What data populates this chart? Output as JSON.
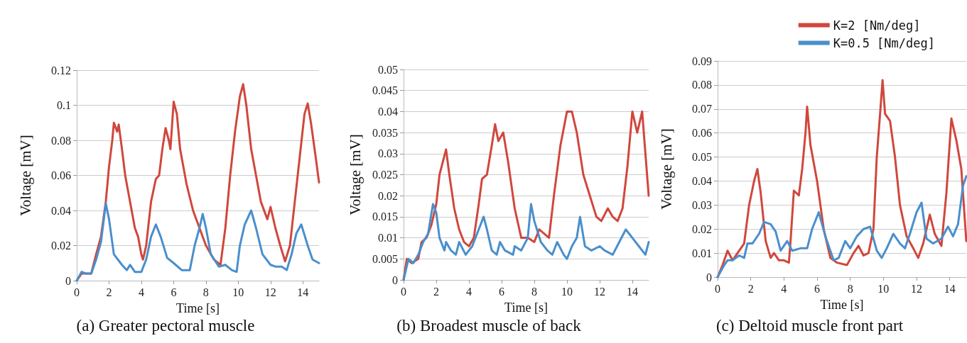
{
  "chart_data": [
    {
      "type": "line",
      "title": "(a) Greater pectoral muscle",
      "xlabel": "Time [s]",
      "ylabel": "Voltage [mV]",
      "xlim": [
        0,
        15
      ],
      "xticks": [
        0,
        2,
        4,
        6,
        8,
        10,
        12,
        14
      ],
      "ylim": [
        0,
        0.12
      ],
      "yticks": [
        0,
        0.02,
        0.04,
        0.06,
        0.08,
        0.1,
        0.12
      ],
      "grid": "y",
      "legend": false,
      "marker": "none",
      "line_style": "solid",
      "series": [
        {
          "color": "#d0473d",
          "x": [
            0,
            0.3,
            0.6,
            0.9,
            1.2,
            1.5,
            1.8,
            2.0,
            2.2,
            2.3,
            2.5,
            2.6,
            2.8,
            3.0,
            3.3,
            3.6,
            3.8,
            4.0,
            4.1,
            4.3,
            4.6,
            4.9,
            5.1,
            5.3,
            5.5,
            5.7,
            5.8,
            6.0,
            6.2,
            6.4,
            6.8,
            7.2,
            7.6,
            8.0,
            8.5,
            8.9,
            9.2,
            9.5,
            9.8,
            10.1,
            10.3,
            10.5,
            10.8,
            11.1,
            11.4,
            11.8,
            12.0,
            12.3,
            12.6,
            12.9,
            13.2,
            13.5,
            13.8,
            14.1,
            14.3,
            14.5,
            14.8,
            15
          ],
          "values": [
            0,
            0.004,
            0.004,
            0.004,
            0.015,
            0.025,
            0.045,
            0.065,
            0.08,
            0.09,
            0.085,
            0.089,
            0.075,
            0.06,
            0.045,
            0.03,
            0.025,
            0.015,
            0.012,
            0.02,
            0.045,
            0.058,
            0.06,
            0.075,
            0.087,
            0.08,
            0.075,
            0.102,
            0.095,
            0.075,
            0.055,
            0.04,
            0.03,
            0.02,
            0.012,
            0.009,
            0.03,
            0.06,
            0.085,
            0.105,
            0.112,
            0.1,
            0.075,
            0.06,
            0.045,
            0.035,
            0.042,
            0.03,
            0.02,
            0.011,
            0.02,
            0.045,
            0.07,
            0.095,
            0.101,
            0.09,
            0.07,
            0.056
          ]
        },
        {
          "color": "#4a8fcc",
          "x": [
            0,
            0.3,
            0.6,
            0.9,
            1.2,
            1.5,
            1.8,
            2.0,
            2.3,
            2.8,
            3.1,
            3.3,
            3.6,
            4.0,
            4.3,
            4.6,
            4.9,
            5.2,
            5.6,
            6.0,
            6.5,
            7.0,
            7.3,
            7.6,
            7.8,
            8.0,
            8.3,
            8.8,
            9.2,
            9.6,
            9.9,
            10.1,
            10.4,
            10.8,
            11.1,
            11.5,
            12.0,
            12.3,
            12.7,
            13.0,
            13.3,
            13.6,
            13.9,
            14.3,
            14.6,
            15
          ],
          "values": [
            0,
            0.005,
            0.004,
            0.004,
            0.012,
            0.022,
            0.044,
            0.035,
            0.015,
            0.009,
            0.006,
            0.009,
            0.005,
            0.005,
            0.012,
            0.025,
            0.032,
            0.025,
            0.013,
            0.01,
            0.006,
            0.006,
            0.02,
            0.03,
            0.038,
            0.03,
            0.015,
            0.008,
            0.009,
            0.006,
            0.005,
            0.02,
            0.032,
            0.04,
            0.03,
            0.015,
            0.009,
            0.008,
            0.008,
            0.006,
            0.015,
            0.027,
            0.032,
            0.02,
            0.012,
            0.01
          ]
        }
      ]
    },
    {
      "type": "line",
      "title": "(b) Broadest muscle of back",
      "xlabel": "Time [s]",
      "ylabel": "Voltage [mV]",
      "xlim": [
        0,
        15
      ],
      "xticks": [
        0,
        2,
        4,
        6,
        8,
        10,
        12,
        14
      ],
      "ylim": [
        0,
        0.05
      ],
      "yticks": [
        0,
        0.005,
        0.01,
        0.015,
        0.02,
        0.025,
        0.03,
        0.035,
        0.04,
        0.045,
        0.05
      ],
      "grid": "y",
      "legend": false,
      "marker": "none",
      "line_style": "solid",
      "series": [
        {
          "color": "#d0473d",
          "x": [
            0,
            0.2,
            0.5,
            0.9,
            1.1,
            1.4,
            1.7,
            2.0,
            2.2,
            2.4,
            2.6,
            2.8,
            3.1,
            3.4,
            3.7,
            4.0,
            4.3,
            4.6,
            4.8,
            5.1,
            5.4,
            5.6,
            5.8,
            6.1,
            6.4,
            6.8,
            7.2,
            7.6,
            8.0,
            8.3,
            8.6,
            8.9,
            9.2,
            9.6,
            10.0,
            10.3,
            10.6,
            11.0,
            11.4,
            11.8,
            12.1,
            12.5,
            12.8,
            13.1,
            13.4,
            13.7,
            14.0,
            14.3,
            14.6,
            14.8,
            15
          ],
          "values": [
            0,
            0.005,
            0.004,
            0.005,
            0.009,
            0.01,
            0.013,
            0.018,
            0.025,
            0.028,
            0.031,
            0.025,
            0.017,
            0.012,
            0.009,
            0.008,
            0.01,
            0.018,
            0.024,
            0.025,
            0.032,
            0.037,
            0.033,
            0.035,
            0.028,
            0.017,
            0.01,
            0.01,
            0.009,
            0.012,
            0.011,
            0.01,
            0.02,
            0.032,
            0.04,
            0.04,
            0.035,
            0.025,
            0.02,
            0.015,
            0.014,
            0.017,
            0.015,
            0.014,
            0.017,
            0.027,
            0.04,
            0.035,
            0.04,
            0.03,
            0.02
          ]
        },
        {
          "color": "#4a8fcc",
          "x": [
            0,
            0.3,
            0.6,
            0.9,
            1.2,
            1.5,
            1.8,
            2.0,
            2.2,
            2.5,
            2.6,
            2.9,
            3.2,
            3.4,
            3.8,
            4.2,
            4.6,
            4.9,
            5.1,
            5.4,
            5.7,
            5.9,
            6.2,
            6.7,
            6.8,
            7.2,
            7.6,
            7.8,
            8.0,
            8.4,
            8.8,
            9.1,
            9.4,
            9.8,
            10.0,
            10.3,
            10.6,
            10.8,
            11.1,
            11.5,
            12.0,
            12.3,
            12.8,
            13.2,
            13.6,
            14.0,
            14.4,
            14.8,
            15
          ],
          "values": [
            0,
            0.005,
            0.004,
            0.006,
            0.009,
            0.011,
            0.018,
            0.016,
            0.01,
            0.007,
            0.009,
            0.007,
            0.006,
            0.009,
            0.006,
            0.008,
            0.012,
            0.015,
            0.012,
            0.007,
            0.006,
            0.009,
            0.007,
            0.006,
            0.008,
            0.007,
            0.01,
            0.018,
            0.014,
            0.009,
            0.007,
            0.006,
            0.009,
            0.006,
            0.005,
            0.008,
            0.01,
            0.015,
            0.008,
            0.007,
            0.008,
            0.007,
            0.006,
            0.009,
            0.012,
            0.01,
            0.008,
            0.006,
            0.009
          ]
        }
      ]
    },
    {
      "type": "line",
      "title": "(c) Deltoid muscle front part",
      "xlabel": "Time [s]",
      "ylabel": "Voltage [mV]",
      "xlim": [
        0,
        15
      ],
      "xticks": [
        0,
        2,
        4,
        6,
        8,
        10,
        12,
        14
      ],
      "ylim": [
        0,
        0.09
      ],
      "yticks": [
        0,
        0.01,
        0.02,
        0.03,
        0.04,
        0.05,
        0.06,
        0.07,
        0.08,
        0.09
      ],
      "grid": "y",
      "legend": "top right",
      "marker": "none",
      "line_style": "solid",
      "series": [
        {
          "name": "K=2 [Nm/deg]",
          "color": "#d0473d",
          "x": [
            0,
            0.3,
            0.6,
            0.9,
            1.2,
            1.6,
            1.9,
            2.2,
            2.4,
            2.6,
            2.9,
            3.2,
            3.4,
            3.7,
            4.0,
            4.3,
            4.4,
            4.6,
            4.9,
            5.1,
            5.3,
            5.4,
            5.6,
            6.0,
            6.4,
            6.8,
            7.2,
            7.8,
            8.2,
            8.5,
            8.8,
            9.1,
            9.4,
            9.6,
            9.8,
            9.95,
            10.1,
            10.4,
            10.7,
            11.0,
            11.4,
            11.8,
            12.1,
            12.4,
            12.8,
            13.1,
            13.5,
            13.8,
            14.1,
            14.4,
            14.7,
            15
          ],
          "values": [
            0,
            0.005,
            0.011,
            0.007,
            0.01,
            0.014,
            0.03,
            0.04,
            0.045,
            0.035,
            0.015,
            0.008,
            0.01,
            0.007,
            0.007,
            0.006,
            0.015,
            0.036,
            0.034,
            0.045,
            0.06,
            0.071,
            0.055,
            0.04,
            0.02,
            0.008,
            0.006,
            0.005,
            0.01,
            0.013,
            0.009,
            0.01,
            0.02,
            0.05,
            0.068,
            0.082,
            0.068,
            0.065,
            0.05,
            0.03,
            0.017,
            0.012,
            0.008,
            0.014,
            0.026,
            0.018,
            0.013,
            0.035,
            0.066,
            0.057,
            0.045,
            0.015
          ]
        },
        {
          "name": "K=0.5 [Nm/deg]",
          "color": "#4a8fcc",
          "x": [
            0,
            0.4,
            0.6,
            0.9,
            1.3,
            1.6,
            1.8,
            2.1,
            2.5,
            2.8,
            3.2,
            3.5,
            3.8,
            4.2,
            4.5,
            5.0,
            5.4,
            5.7,
            6.1,
            6.5,
            7.0,
            7.3,
            7.7,
            8.0,
            8.4,
            8.8,
            9.2,
            9.6,
            9.9,
            10.2,
            10.6,
            11.0,
            11.3,
            11.6,
            12.0,
            12.3,
            12.6,
            13.0,
            13.5,
            13.9,
            14.2,
            14.5,
            14.8,
            15
          ],
          "values": [
            0,
            0.005,
            0.007,
            0.007,
            0.009,
            0.008,
            0.014,
            0.014,
            0.018,
            0.023,
            0.022,
            0.019,
            0.011,
            0.015,
            0.011,
            0.012,
            0.012,
            0.02,
            0.027,
            0.017,
            0.007,
            0.008,
            0.015,
            0.012,
            0.017,
            0.02,
            0.021,
            0.011,
            0.008,
            0.012,
            0.018,
            0.014,
            0.012,
            0.018,
            0.027,
            0.031,
            0.016,
            0.014,
            0.016,
            0.021,
            0.017,
            0.022,
            0.038,
            0.042
          ]
        }
      ]
    }
  ]
}
